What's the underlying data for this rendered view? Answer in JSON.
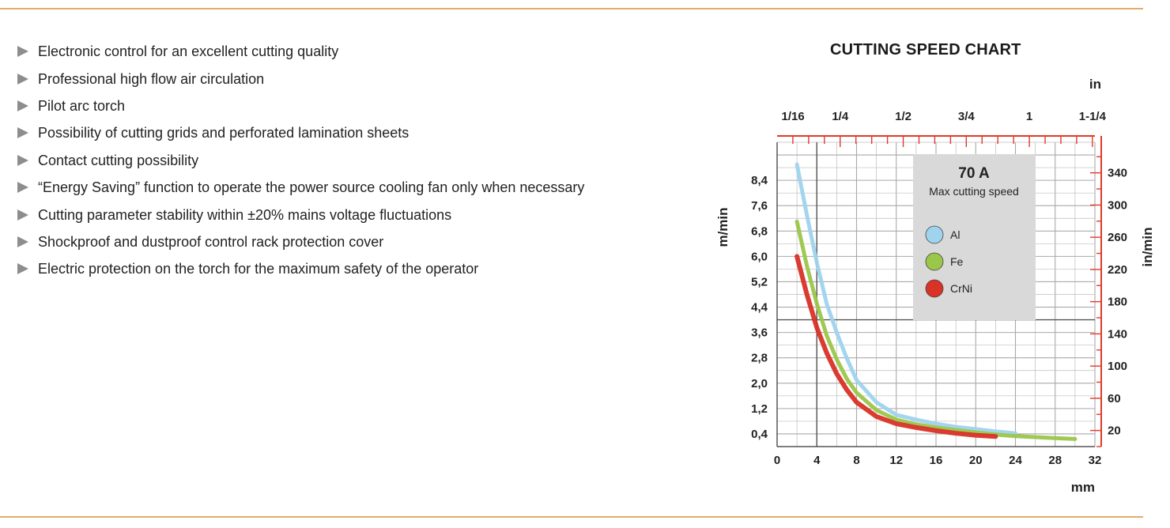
{
  "features": [
    "Electronic control for an excellent cutting quality",
    "Professional high flow air circulation",
    "Pilot arc torch",
    "Possibility of cutting grids and perforated lamination sheets",
    "Contact cutting possibility",
    "“Energy Saving” function to operate the power source cooling fan only when necessary",
    "Cutting parameter stability within ±20% mains voltage fluctuations",
    "Shockproof and dustproof control rack protection cover",
    "Electric protection on the torch for the maximum safety of the operator"
  ],
  "colors": {
    "rule": "#e1ac6a",
    "bullet": "#8d8d8d",
    "axis": "#e03a2a",
    "grid": "#bdbdbd",
    "legend_bg": "#d9d9d9",
    "al": "#9fd3ee",
    "fe": "#9ac64a",
    "crni": "#d93226"
  },
  "chart_data": {
    "type": "line",
    "title": "CUTTING SPEED CHART",
    "xlabel": "mm",
    "ylabel": "m/min",
    "x2label": "in",
    "y2label": "in/min",
    "xlim": [
      0,
      32
    ],
    "ylim": [
      0,
      9.6
    ],
    "x_ticks": [
      0,
      4,
      8,
      12,
      16,
      20,
      24,
      28,
      32
    ],
    "y_ticks": [
      "0,4",
      "1,2",
      "2,0",
      "2,8",
      "3,6",
      "4,4",
      "5,2",
      "6,0",
      "6,8",
      "7,6",
      "8,4"
    ],
    "y_tick_values": [
      0.4,
      1.2,
      2.0,
      2.8,
      3.6,
      4.4,
      5.2,
      6.0,
      6.8,
      7.6,
      8.4
    ],
    "x2_ticks": [
      "1/16",
      "1/4",
      "1/2",
      "3/4",
      "1",
      "1-1/4"
    ],
    "x2_tick_mm": [
      1.6,
      6.35,
      12.7,
      19.05,
      25.4,
      31.75
    ],
    "y2_ticks": [
      20,
      60,
      100,
      140,
      180,
      220,
      260,
      300,
      340
    ],
    "legend": {
      "title": "70 A",
      "subtitle": "Max cutting speed",
      "entries": [
        "Al",
        "Fe",
        "CrNi"
      ]
    },
    "series": [
      {
        "name": "Al",
        "x": [
          2,
          3,
          4,
          5,
          6,
          7,
          8,
          10,
          12,
          14,
          16,
          18,
          20,
          22,
          24
        ],
        "y": [
          8.9,
          7.3,
          5.8,
          4.5,
          3.6,
          2.8,
          2.1,
          1.4,
          1.0,
          0.85,
          0.72,
          0.62,
          0.55,
          0.48,
          0.42
        ]
      },
      {
        "name": "Fe",
        "x": [
          2,
          3,
          4,
          5,
          6,
          7,
          8,
          10,
          12,
          14,
          16,
          18,
          20,
          22,
          24,
          26,
          28,
          30
        ],
        "y": [
          7.1,
          5.7,
          4.5,
          3.5,
          2.75,
          2.15,
          1.7,
          1.15,
          0.85,
          0.7,
          0.6,
          0.52,
          0.45,
          0.38,
          0.33,
          0.3,
          0.27,
          0.24
        ]
      },
      {
        "name": "CrNi",
        "x": [
          2,
          3,
          4,
          5,
          6,
          7,
          8,
          10,
          12,
          14,
          16,
          18,
          20,
          22
        ],
        "y": [
          6.0,
          4.8,
          3.75,
          2.95,
          2.3,
          1.8,
          1.4,
          0.95,
          0.72,
          0.6,
          0.5,
          0.42,
          0.36,
          0.32
        ]
      }
    ]
  }
}
